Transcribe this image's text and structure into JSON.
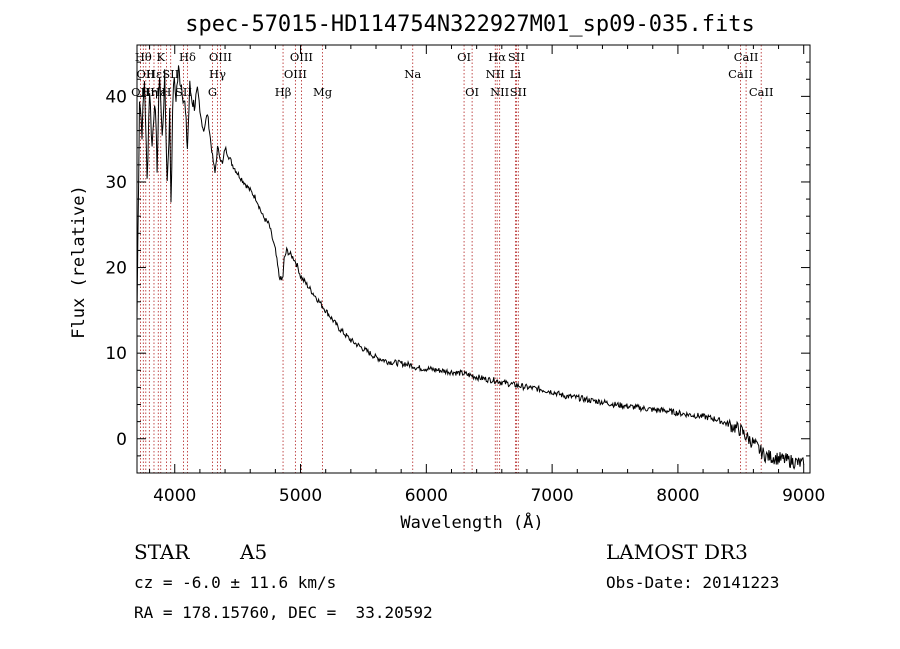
{
  "chart_data": {
    "type": "line",
    "title": "spec-57015-HD114754N322927M01_sp09-035.fits",
    "xlabel": "Wavelength (Å)",
    "ylabel": "Flux (relative)",
    "xlim": [
      3700,
      9050
    ],
    "ylim": [
      -4,
      46
    ],
    "xticks": [
      4000,
      5000,
      6000,
      7000,
      8000,
      9000
    ],
    "yticks": [
      0,
      10,
      20,
      30,
      40
    ],
    "series": [
      {
        "name": "spectrum",
        "x": [
          3700,
          3720,
          3740,
          3760,
          3780,
          3800,
          3820,
          3840,
          3860,
          3880,
          3900,
          3920,
          3940,
          3960,
          3970,
          3990,
          4010,
          4030,
          4060,
          4080,
          4101,
          4120,
          4150,
          4180,
          4200,
          4230,
          4260,
          4300,
          4320,
          4340,
          4360,
          4380,
          4400,
          4430,
          4460,
          4500,
          4550,
          4600,
          4650,
          4700,
          4750,
          4800,
          4830,
          4850,
          4861,
          4870,
          4890,
          4920,
          4950,
          4980,
          5000,
          5050,
          5100,
          5150,
          5200,
          5300,
          5400,
          5500,
          5600,
          5700,
          5800,
          5880,
          5900,
          5920,
          6000,
          6100,
          6200,
          6300,
          6400,
          6500,
          6560,
          6600,
          6700,
          6800,
          6900,
          7000,
          7100,
          7200,
          7300,
          7400,
          7500,
          7600,
          7700,
          7800,
          7900,
          8000,
          8100,
          8200,
          8300,
          8400,
          8500,
          8540,
          8600,
          8660,
          8700,
          8800,
          8900,
          9000
        ],
        "y": [
          14,
          40,
          36,
          42,
          30,
          41,
          34,
          40,
          32,
          43,
          35,
          42,
          30,
          38,
          28,
          42,
          40,
          43,
          41,
          39,
          34,
          41,
          39,
          40,
          38,
          36,
          38,
          33,
          31,
          34,
          33,
          32,
          34,
          33,
          32,
          31,
          30,
          29,
          28,
          26,
          25,
          22,
          19,
          18.5,
          19,
          21,
          22,
          21.5,
          21,
          20,
          19,
          18,
          17,
          16,
          15,
          13,
          11.5,
          10.5,
          9.5,
          9,
          8.8,
          8.6,
          8.5,
          8.3,
          8.2,
          8.0,
          7.8,
          7.6,
          7.2,
          6.9,
          6.8,
          6.6,
          6.3,
          6.0,
          5.8,
          5.5,
          5.0,
          4.8,
          4.5,
          4.3,
          4.0,
          3.8,
          3.6,
          3.4,
          3.3,
          3.0,
          2.8,
          2.6,
          2.3,
          1.7,
          1.0,
          0.3,
          -0.5,
          -1.5,
          -2.0,
          -2.3,
          -2.6,
          -3.0
        ]
      }
    ],
    "lines": [
      {
        "wave": 3727,
        "label": "OII",
        "row": 3
      },
      {
        "wave": 3750,
        "label": "Hθ",
        "row": 1
      },
      {
        "wave": 3770,
        "label": "OII",
        "row": 2
      },
      {
        "wave": 3798,
        "label": "Hη",
        "row": 3
      },
      {
        "wave": 3835,
        "label": "Hε",
        "row": 2
      },
      {
        "wave": 3869,
        "label": "Hε",
        "row": 3
      },
      {
        "wave": 3889,
        "label": "K",
        "row": 1
      },
      {
        "wave": 3934,
        "label": "H",
        "row": 3
      },
      {
        "wave": 3968,
        "label": "SII",
        "row": 2
      },
      {
        "wave": 4070,
        "label": "SII",
        "row": 3
      },
      {
        "wave": 4101,
        "label": "Hδ",
        "row": 1
      },
      {
        "wave": 4300,
        "label": "G",
        "row": 3
      },
      {
        "wave": 4340,
        "label": "Hγ",
        "row": 2
      },
      {
        "wave": 4363,
        "label": "OIII",
        "row": 1
      },
      {
        "wave": 4861,
        "label": "Hβ",
        "row": 3
      },
      {
        "wave": 4959,
        "label": "OIII",
        "row": 2
      },
      {
        "wave": 5007,
        "label": "OIII",
        "row": 1
      },
      {
        "wave": 5175,
        "label": "Mg",
        "row": 3
      },
      {
        "wave": 5892,
        "label": "Na",
        "row": 2
      },
      {
        "wave": 6300,
        "label": "OI",
        "row": 1
      },
      {
        "wave": 6364,
        "label": "OI",
        "row": 3
      },
      {
        "wave": 6548,
        "label": "NII",
        "row": 2
      },
      {
        "wave": 6563,
        "label": "Hα",
        "row": 1
      },
      {
        "wave": 6583,
        "label": "NII",
        "row": 3
      },
      {
        "wave": 6708,
        "label": "Li",
        "row": 2
      },
      {
        "wave": 6716,
        "label": "SII",
        "row": 1
      },
      {
        "wave": 6731,
        "label": "SII",
        "row": 3
      },
      {
        "wave": 8498,
        "label": "CaII",
        "row": 2
      },
      {
        "wave": 8542,
        "label": "CaII",
        "row": 1
      },
      {
        "wave": 8662,
        "label": "CaII",
        "row": 3
      }
    ]
  },
  "footer": {
    "class": "STAR",
    "subclass": "A5",
    "survey": "LAMOST DR3",
    "cz": "cz = -6.0 ± 11.6 km/s",
    "obs_date": "Obs-Date: 20141223",
    "coords": "RA = 178.15760, DEC =  33.20592"
  }
}
